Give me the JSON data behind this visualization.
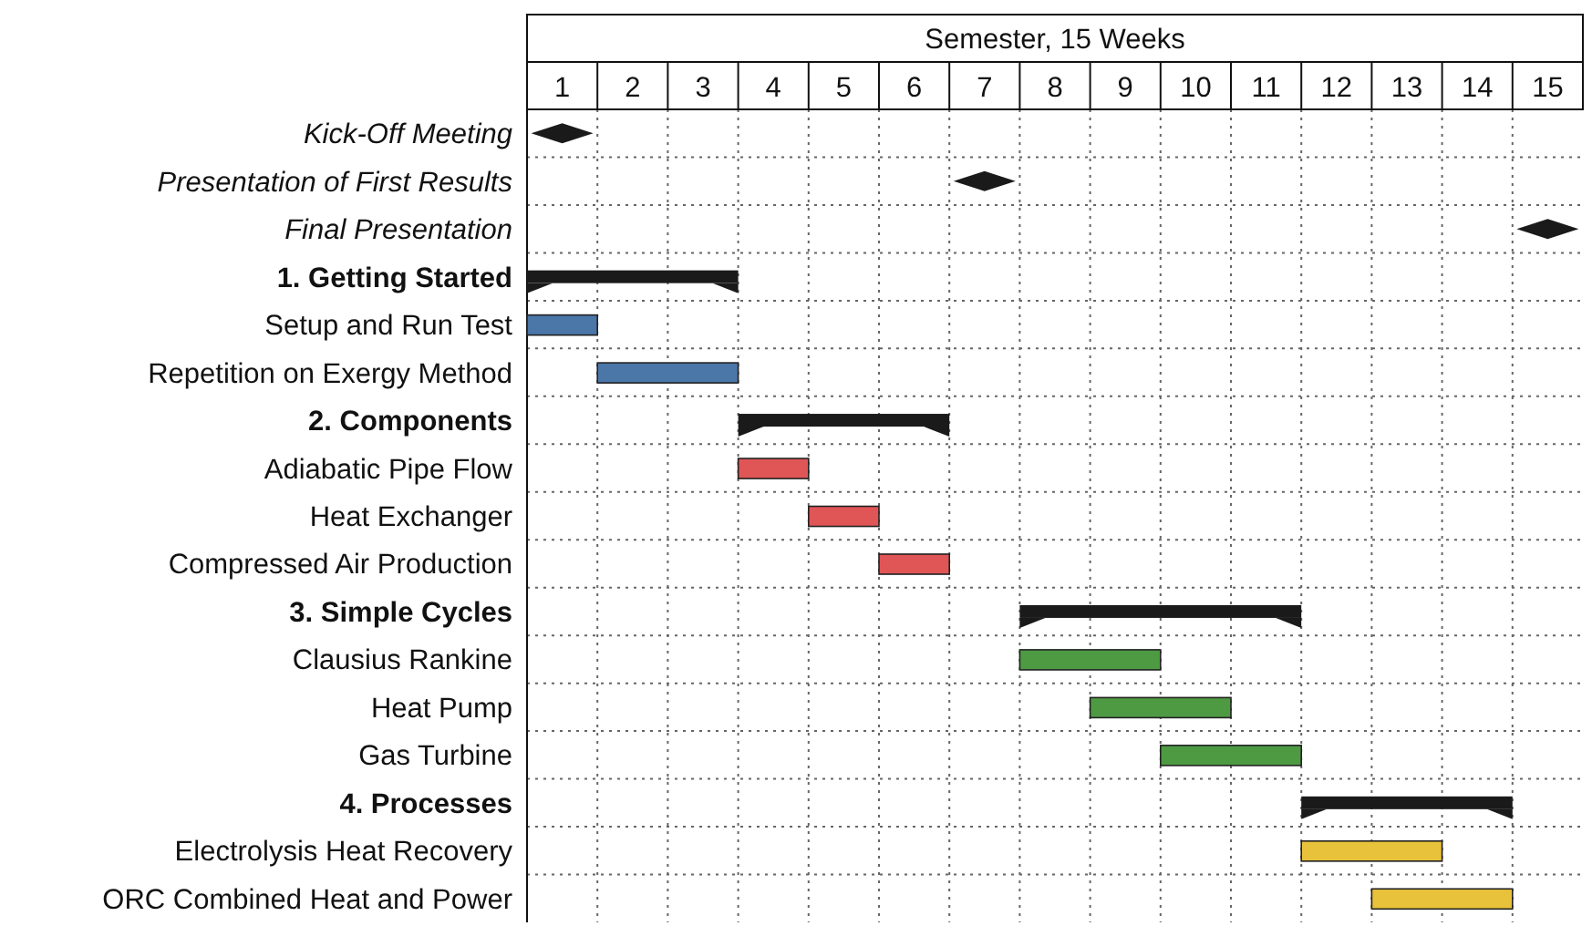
{
  "chart_data": {
    "type": "bar",
    "orientation": "horizontal",
    "xlabel": "Semester, 15 Weeks",
    "categories": [
      "Kick-Off Meeting",
      "Presentation of First Results",
      "Final Presentation",
      "1. Getting Started",
      "Setup and Run Test",
      "Repetition on Exergy Method",
      "2. Components",
      "Adiabatic Pipe Flow",
      "Heat Exchanger",
      "Compressed Air Production",
      "3. Simple Cycles",
      "Clausius Rankine",
      "Heat Pump",
      "Gas Turbine",
      "4. Processes",
      "Electrolysis Heat Recovery",
      "ORC Combined Heat and Power"
    ],
    "series": [
      {
        "color": "#1a1a1a",
        "base": [
          null,
          null,
          null,
          0,
          null,
          null,
          3,
          null,
          null,
          null,
          7,
          null,
          null,
          null,
          11,
          null,
          null
        ],
        "values": [
          null,
          null,
          null,
          3,
          null,
          null,
          3,
          null,
          null,
          null,
          4,
          null,
          null,
          null,
          3,
          null,
          null
        ]
      },
      {
        "color": "#4a76a8",
        "base": [
          null,
          null,
          null,
          null,
          0,
          1,
          null,
          null,
          null,
          null,
          null,
          null,
          null,
          null,
          null,
          null,
          null
        ],
        "values": [
          null,
          null,
          null,
          null,
          1,
          2,
          null,
          null,
          null,
          null,
          null,
          null,
          null,
          null,
          null,
          null,
          null
        ]
      },
      {
        "color": "#e05556",
        "base": [
          null,
          null,
          null,
          null,
          null,
          null,
          null,
          3,
          4,
          5,
          null,
          null,
          null,
          null,
          null,
          null,
          null
        ],
        "values": [
          null,
          null,
          null,
          null,
          null,
          null,
          null,
          1,
          1,
          1,
          null,
          null,
          null,
          null,
          null,
          null,
          null
        ]
      },
      {
        "color": "#4e9a43",
        "base": [
          null,
          null,
          null,
          null,
          null,
          null,
          null,
          null,
          null,
          null,
          null,
          7,
          8,
          9,
          null,
          null,
          null
        ],
        "values": [
          null,
          null,
          null,
          null,
          null,
          null,
          null,
          null,
          null,
          null,
          null,
          2,
          2,
          2,
          null,
          null,
          null
        ]
      },
      {
        "color": "#e8c23a",
        "base": [
          null,
          null,
          null,
          null,
          null,
          null,
          null,
          null,
          null,
          null,
          null,
          null,
          null,
          null,
          null,
          11,
          12
        ],
        "values": [
          null,
          null,
          null,
          null,
          null,
          null,
          null,
          null,
          null,
          null,
          null,
          null,
          null,
          null,
          null,
          2,
          2
        ]
      },
      {
        "type": "scatter",
        "marker": "diamond",
        "color": "#1a1a1a",
        "values": [
          0.5,
          6.5,
          14.5,
          null,
          null,
          null,
          null,
          null,
          null,
          null,
          null,
          null,
          null,
          null,
          null,
          null,
          null
        ]
      }
    ],
    "xlim": [
      0,
      15
    ],
    "xticks": [
      {
        "value": 0.5,
        "label": "1"
      },
      {
        "value": 1.5,
        "label": "2"
      },
      {
        "value": 2.5,
        "label": "3"
      },
      {
        "value": 3.5,
        "label": "4"
      },
      {
        "value": 4.5,
        "label": "5"
      },
      {
        "value": 5.5,
        "label": "6"
      },
      {
        "value": 6.5,
        "label": "7"
      },
      {
        "value": 7.5,
        "label": "8"
      },
      {
        "value": 8.5,
        "label": "9"
      },
      {
        "value": 9.5,
        "label": "10"
      },
      {
        "value": 10.5,
        "label": "11"
      },
      {
        "value": 11.5,
        "label": "12"
      },
      {
        "value": 12.5,
        "label": "13"
      },
      {
        "value": 13.5,
        "label": "14"
      },
      {
        "value": 14.5,
        "label": "15"
      }
    ],
    "grid": true
  }
}
